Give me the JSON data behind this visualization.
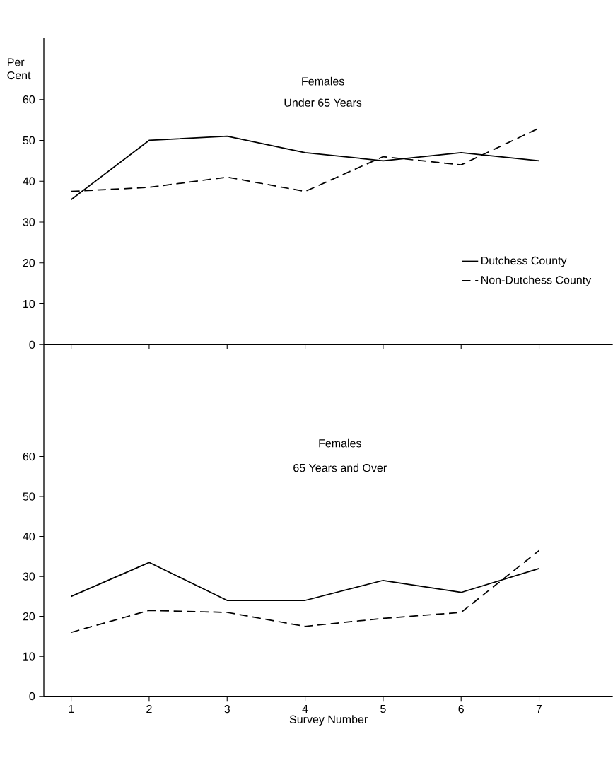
{
  "chart_data": [
    {
      "type": "line",
      "title": "Females",
      "subtitle": "Under 65 Years",
      "ylabel": "Per Cent",
      "categories": [
        "1",
        "2",
        "3",
        "4",
        "5",
        "6",
        "7"
      ],
      "ylim": [
        0,
        75
      ],
      "yticks": [
        0,
        10,
        20,
        30,
        40,
        50,
        60
      ],
      "tick_labels": "y",
      "legend": "bottom right",
      "marker": "none",
      "series": [
        {
          "name": "Dutchess County",
          "color": "#000000",
          "line_style": "solid",
          "values": [
            35.5,
            50,
            51,
            47,
            45,
            47,
            45
          ]
        },
        {
          "name": "Non-Dutchess County",
          "color": "#000000",
          "line_style": "dashed",
          "values": [
            37.5,
            38.5,
            41,
            37.5,
            46,
            44,
            53
          ]
        }
      ]
    },
    {
      "type": "line",
      "title": "Females",
      "subtitle": "65 Years and Over",
      "xlabel": "Survey Number",
      "categories": [
        "1",
        "2",
        "3",
        "4",
        "5",
        "6",
        "7"
      ],
      "ylim": [
        0,
        88
      ],
      "yticks": [
        0,
        10,
        20,
        30,
        40,
        50,
        60
      ],
      "marker": "none",
      "series": [
        {
          "color": "#000000",
          "line_style": "solid",
          "values": [
            25,
            33.5,
            24,
            24,
            29,
            26,
            32
          ]
        },
        {
          "color": "#000000",
          "line_style": "dashed",
          "values": [
            16,
            21.5,
            21,
            17.5,
            19.5,
            21,
            36.5
          ]
        }
      ]
    }
  ]
}
